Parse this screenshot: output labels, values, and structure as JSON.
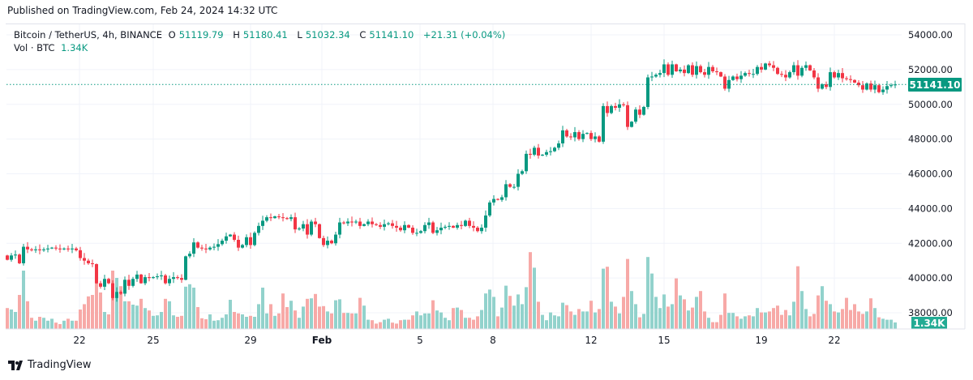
{
  "header": {
    "published": "Published on TradingView.com, Feb 24, 2024 14:32 UTC"
  },
  "legend": {
    "symbol": "Bitcoin / TetherUS, 4h, BINANCE",
    "o_label": "O",
    "o": "51119.79",
    "h_label": "H",
    "h": "51180.41",
    "l_label": "L",
    "l": "51032.34",
    "c_label": "C",
    "c": "51141.10",
    "change": "+21.31 (+0.04%)",
    "vol_label": "Vol · BTC",
    "vol": "1.34K"
  },
  "footer": {
    "brand": "TradingView"
  },
  "colors": {
    "up": "#089981",
    "down": "#f23645",
    "vol_up": "#92d2cc",
    "vol_down": "#f7a9a7",
    "last_price": "#089981"
  },
  "chart_data": {
    "type": "candlestick",
    "interval": "4h",
    "price_ticks": [
      "54000.00",
      "52000.00",
      "50000.00",
      "48000.00",
      "46000.00",
      "44000.00",
      "42000.00",
      "40000.00",
      "38000.00"
    ],
    "price_tick_values": [
      54000,
      52000,
      50000,
      48000,
      46000,
      44000,
      42000,
      40000,
      38000
    ],
    "x_tick_labels": [
      "22",
      "25",
      "29",
      "Feb",
      "5",
      "8",
      "12",
      "15",
      "19",
      "22"
    ],
    "last_price_label": "51141.10",
    "last_volume_label": "1.34K",
    "grid": true,
    "first_open": 41300,
    "close": [
      41050,
      41300,
      41350,
      40850,
      41800,
      41650,
      41600,
      41650,
      41600,
      41650,
      41700,
      41750,
      41700,
      41650,
      41700,
      41650,
      41700,
      41600,
      41150,
      41000,
      40850,
      40800,
      39700,
      39500,
      39950,
      39700,
      38850,
      39200,
      39100,
      39900,
      39550,
      39950,
      40200,
      39700,
      40050,
      40000,
      40050,
      40100,
      40150,
      39700,
      39950,
      40050,
      40000,
      39900,
      41250,
      41400,
      42050,
      41750,
      41700,
      41650,
      41750,
      41800,
      41950,
      42150,
      42400,
      42500,
      42200,
      41750,
      41900,
      42350,
      41900,
      42600,
      43000,
      43300,
      43500,
      43450,
      43550,
      43500,
      43450,
      43400,
      43500,
      42800,
      42850,
      43100,
      42500,
      43250,
      43100,
      42300,
      41900,
      42150,
      42000,
      42500,
      43200,
      43150,
      43250,
      43200,
      43250,
      43000,
      43100,
      43250,
      43100,
      43050,
      42950,
      43100,
      43150,
      43000,
      42900,
      42750,
      43050,
      42900,
      42600,
      42600,
      42700,
      43050,
      43200,
      42600,
      42750,
      42900,
      42950,
      43000,
      42900,
      43050,
      43000,
      43300,
      43000,
      42900,
      42700,
      42900,
      43600,
      44350,
      44550,
      44500,
      44650,
      45400,
      45250,
      45250,
      46000,
      46150,
      47150,
      47100,
      47500,
      47050,
      47100,
      47250,
      47300,
      47500,
      47750,
      48500,
      48150,
      48100,
      48400,
      48000,
      48300,
      48350,
      48000,
      48150,
      47850,
      49900,
      49500,
      49900,
      49800,
      50000,
      49950,
      48700,
      49000,
      49700,
      49400,
      49850,
      51550,
      51600,
      51700,
      51800,
      52300,
      51700,
      52300,
      51900,
      52000,
      51800,
      52250,
      51700,
      52200,
      51850,
      51700,
      52150,
      51900,
      51850,
      51600,
      50900,
      51400,
      51600,
      51450,
      51650,
      51800,
      51750,
      51750,
      52150,
      52000,
      52350,
      52250,
      52100,
      51750,
      51700,
      51550,
      51850,
      52250,
      51650,
      52100,
      52250,
      51950,
      51550,
      50900,
      51150,
      51000,
      51850,
      51550,
      51800,
      51500,
      51450,
      51400,
      51250,
      51100,
      50850,
      51200,
      50850,
      51100,
      50700,
      50850,
      51050,
      51100,
      51141.1
    ],
    "volume_k": [
      4.3,
      4,
      3.5,
      7,
      12,
      5.7,
      2.3,
      1.7,
      2.5,
      2.3,
      1.7,
      2.1,
      1.3,
      1,
      1.7,
      2.1,
      1.7,
      1.7,
      4,
      5.1,
      6.7,
      7,
      11.3,
      7.5,
      3.5,
      3,
      12,
      10.5,
      8.8,
      5.7,
      5.7,
      5,
      4.8,
      6.2,
      4.3,
      3.8,
      2.7,
      2.8,
      3.5,
      6.2,
      5.7,
      2.8,
      2.5,
      2.7,
      8.7,
      9.2,
      8.5,
      4.5,
      2.2,
      2,
      3,
      1.7,
      1.8,
      2.3,
      3,
      6,
      3.5,
      3.2,
      3,
      2.5,
      2.7,
      2.5,
      5.1,
      8.5,
      3.2,
      5.1,
      2.7,
      3.2,
      7.3,
      4.5,
      5.8,
      3.8,
      2.3,
      4.6,
      6.2,
      6.3,
      7.2,
      4.6,
      4.7,
      3.6,
      3.2,
      5.9,
      6.1,
      3.3,
      3.3,
      3.2,
      3.2,
      6.4,
      4.8,
      1.9,
      1.8,
      1.1,
      1.4,
      1.9,
      2.1,
      1.3,
      1.1,
      1.8,
      1.9,
      1.9,
      2.8,
      3.6,
      2.8,
      3.2,
      3.2,
      5.9,
      3.8,
      3.4,
      2.3,
      1.8,
      4.3,
      4.4,
      3.9,
      2.3,
      2.3,
      1.9,
      2.6,
      3.9,
      7.3,
      8.1,
      6.6,
      2.6,
      4.4,
      8.9,
      6.8,
      4.8,
      7.1,
      5.1,
      8.6,
      15.8,
      12.6,
      5.6,
      2.9,
      1.8,
      3.4,
      2.8,
      2.6,
      5.4,
      4.9,
      3.6,
      2.9,
      4.1,
      3.6,
      3.6,
      5.8,
      3.4,
      4.1,
      12.4,
      12.8,
      5.6,
      4.6,
      3.2,
      6.6,
      14.4,
      7.8,
      5.1,
      2.4,
      3.1,
      14.8,
      11.4,
      6.6,
      4.3,
      7.1,
      4.6,
      5.1,
      10.4,
      6.9,
      6.1,
      3.8,
      4.4,
      6.6,
      7.8,
      3.6,
      2.3,
      1.4,
      1.4,
      2.9,
      7.3,
      3.3,
      3.3,
      2.6,
      2.1,
      2.6,
      2.8,
      2.6,
      4.3,
      3.4,
      3.4,
      3.6,
      4.3,
      4.8,
      2.9,
      3.9,
      2.8,
      5.6,
      12.9,
      7.8,
      4.1,
      2.6,
      3.1,
      6.9,
      8.8,
      5.8,
      5.1,
      3.6,
      3.4,
      4.1,
      6.4,
      3.9,
      5.1,
      3.6,
      3.1,
      3.6,
      6.3,
      4.3,
      2.4,
      2.1,
      1.9,
      1.9,
      1.34
    ]
  }
}
